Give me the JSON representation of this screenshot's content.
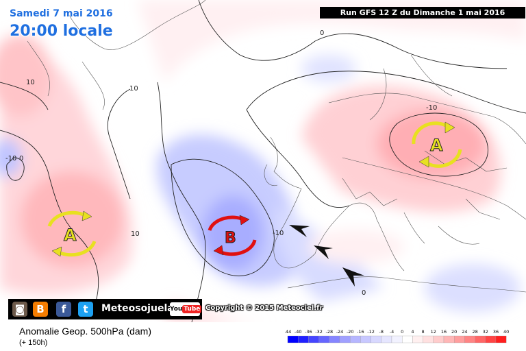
{
  "header": {
    "date": "Samedi 7 mai 2016",
    "time": "20:00 locale",
    "run": "Run GFS 12 Z du Dimanche 1 mai 2016"
  },
  "map": {
    "isoline_labels": [
      "0",
      "10",
      "10",
      "-10",
      "0",
      "10",
      "-10",
      "-10",
      "0"
    ],
    "pressure_centers": [
      {
        "label": "A",
        "type": "high",
        "color": "#e8e020"
      },
      {
        "label": "B",
        "type": "low",
        "color": "#e01010"
      },
      {
        "label": "A",
        "type": "high",
        "color": "#e8e020"
      }
    ]
  },
  "branding": {
    "name": "Meteosojuela",
    "youtube": "YouTube",
    "copyright": "Copyright © 2015 Meteociel.fr",
    "icons": [
      "instagram-icon",
      "blogger-icon",
      "facebook-icon",
      "twitter-icon",
      "youtube-icon"
    ]
  },
  "footer": {
    "title": "Anomalie Geop. 500hPa (dam)",
    "subtitle": "(+ 150h)"
  },
  "legend": {
    "ticks": [
      "-44",
      "-40",
      "-36",
      "-32",
      "-28",
      "-24",
      "-20",
      "-16",
      "-12",
      "-8",
      "-4",
      "0",
      "4",
      "8",
      "12",
      "16",
      "20",
      "24",
      "28",
      "32",
      "36",
      "40"
    ],
    "colors": [
      "#0000ff",
      "#2020ff",
      "#4545ff",
      "#6666ff",
      "#8585ff",
      "#a0a0ff",
      "#b6b6ff",
      "#c8c8ff",
      "#d8d8ff",
      "#e6e6ff",
      "#f2f2ff",
      "#ffffff",
      "#fff0f0",
      "#ffe0e0",
      "#ffcccc",
      "#ffb6b6",
      "#ff9e9e",
      "#ff8484",
      "#ff6666",
      "#ff4444",
      "#ff1e1e",
      "#ff0000"
    ]
  }
}
